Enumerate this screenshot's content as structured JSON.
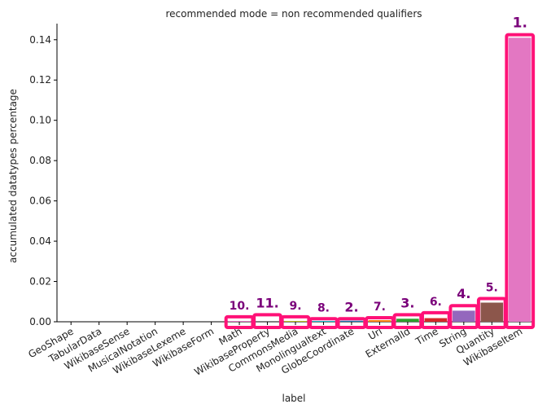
{
  "chart_data": {
    "type": "bar",
    "title": "recommended mode = non recommended qualifiers",
    "xlabel": "label",
    "ylabel": "accumulated datatypes percentage",
    "ylim": [
      0,
      0.148
    ],
    "yticks": [
      "0.00",
      "0.02",
      "0.04",
      "0.06",
      "0.08",
      "0.10",
      "0.12",
      "0.14"
    ],
    "grid": false,
    "categories": [
      "GeoShape",
      "TabularData",
      "WikibaseSense",
      "MusicalNotation",
      "WikibaseLexeme",
      "WikibaseForm",
      "Math",
      "WikibaseProperty",
      "CommonsMedia",
      "Monolingualtext",
      "GlobeCoordinate",
      "Url",
      "ExternalId",
      "Time",
      "String",
      "Quantity",
      "WikibaseItem"
    ],
    "values": [
      0,
      0,
      0,
      0,
      0,
      0,
      0.0002,
      0.0002,
      0.0003,
      0.0003,
      0.0005,
      0.0008,
      0.0015,
      0.0018,
      0.0055,
      0.0095,
      0.141
    ],
    "colors": [
      "#1f77b4",
      "#ff7f0e",
      "#2ca02c",
      "#d62728",
      "#9467bd",
      "#8c564b",
      "#e377c2",
      "#7f7f7f",
      "#bcbd22",
      "#17becf",
      "#1f77b4",
      "#ff7f0e",
      "#2ca02c",
      "#d62728",
      "#9467bd",
      "#8c564b",
      "#e377c2"
    ],
    "annotations": [
      {
        "category": "Math",
        "text": "10.",
        "box_top": 0.0025
      },
      {
        "category": "WikibaseProperty",
        "text": "11.",
        "box_top": 0.0035
      },
      {
        "category": "CommonsMedia",
        "text": "9.",
        "box_top": 0.0025
      },
      {
        "category": "Monolingualtext",
        "text": "8.",
        "box_top": 0.0015
      },
      {
        "category": "GlobeCoordinate",
        "text": "2.",
        "box_top": 0.0015
      },
      {
        "category": "Url",
        "text": "7.",
        "box_top": 0.002
      },
      {
        "category": "ExternalId",
        "text": "3.",
        "box_top": 0.0035
      },
      {
        "category": "Time",
        "text": "6.",
        "box_top": 0.0045
      },
      {
        "category": "String",
        "text": "4.",
        "box_top": 0.008
      },
      {
        "category": "Quantity",
        "text": "5.",
        "box_top": 0.0115
      },
      {
        "category": "WikibaseItem",
        "text": "1.",
        "box_top": 0.1425
      }
    ],
    "highlight_color": "#ff1177",
    "rank_label_color": "#7a007a"
  }
}
